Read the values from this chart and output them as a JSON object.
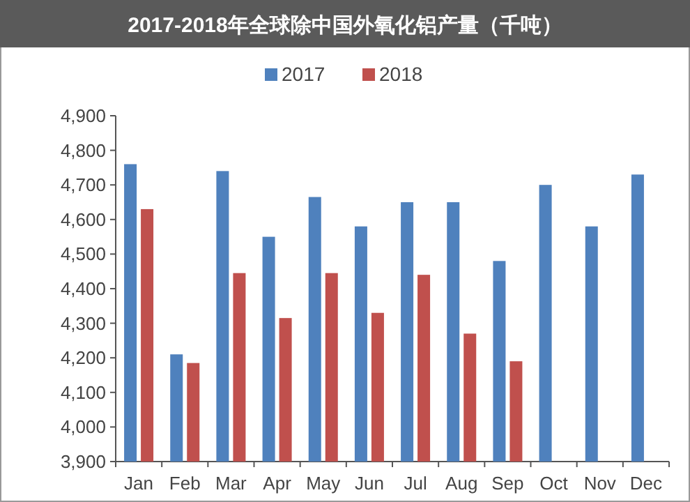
{
  "chart_data": {
    "type": "bar",
    "title": "2017-2018年全球除中国外氧化铝产量（千吨）",
    "categories": [
      "Jan",
      "Feb",
      "Mar",
      "Apr",
      "May",
      "Jun",
      "Jul",
      "Aug",
      "Sep",
      "Oct",
      "Nov",
      "Dec"
    ],
    "series": [
      {
        "name": "2017",
        "color": "#4f81bd",
        "values": [
          4760,
          4210,
          4740,
          4550,
          4665,
          4580,
          4650,
          4650,
          4480,
          4700,
          4580,
          4730
        ]
      },
      {
        "name": "2018",
        "color": "#c0504d",
        "values": [
          4630,
          4185,
          4445,
          4315,
          4445,
          4330,
          4440,
          4270,
          4190,
          null,
          null,
          null
        ]
      }
    ],
    "ylim": [
      3900,
      4900
    ],
    "yticks": [
      {
        "value": 3900,
        "label": "3,900"
      },
      {
        "value": 4000,
        "label": "4,000"
      },
      {
        "value": 4100,
        "label": "4,100"
      },
      {
        "value": 4200,
        "label": "4,200"
      },
      {
        "value": 4300,
        "label": "4,300"
      },
      {
        "value": 4400,
        "label": "4,400"
      },
      {
        "value": 4500,
        "label": "4,500"
      },
      {
        "value": 4600,
        "label": "4,600"
      },
      {
        "value": 4700,
        "label": "4,700"
      },
      {
        "value": 4800,
        "label": "4,800"
      },
      {
        "value": 4900,
        "label": "4,900"
      }
    ],
    "legend": "top"
  }
}
